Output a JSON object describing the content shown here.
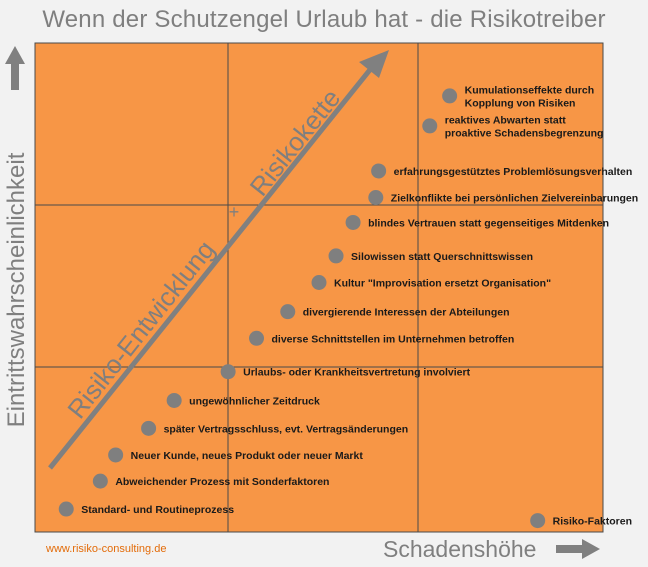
{
  "title": "Wenn der Schutzengel Urlaub hat - die Risikotreiber",
  "y_axis_label": "Eintrittswahrscheinlichkeit",
  "x_axis_label": "Schadenshöhe",
  "footer_url": "www.risiko-consulting.de",
  "diagonal_label_lower": "Risiko-Entwicklung",
  "diagonal_label_upper": "Risikokette",
  "center_mark": "+",
  "colors": {
    "plot_background": "#f79646",
    "grid": "#4a4a4a",
    "points": "#7f7f7f",
    "arrows": "#808080",
    "diagonal_text": "#7f7f7f",
    "footer": "#e36c0a"
  },
  "chart_data": {
    "type": "scatter",
    "grid": "3x3",
    "points": [
      {
        "label": "Kumulationseffekte durch|Kopplung von Risiken",
        "x": 0.73,
        "y": 0.935
      },
      {
        "label": "reaktives Abwarten statt|proaktive Schadensbegrenzung",
        "x": 0.695,
        "y": 0.865
      },
      {
        "label": "erfahrungsgestütztes Problemlösungsverhalten",
        "x": 0.605,
        "y": 0.76
      },
      {
        "label": "Zielkonflikte bei persönlichen Zielvereinbarungen",
        "x": 0.6,
        "y": 0.698
      },
      {
        "label": "blindes Vertrauen statt gegenseitiges Mitdenken",
        "x": 0.56,
        "y": 0.64
      },
      {
        "label": "Silowissen statt Querschnittswissen",
        "x": 0.53,
        "y": 0.562
      },
      {
        "label": "Kultur \"Improvisation ersetzt Organisation\"",
        "x": 0.5,
        "y": 0.5
      },
      {
        "label": "divergierende Interessen der Abteilungen",
        "x": 0.445,
        "y": 0.432
      },
      {
        "label": "diverse Schnittstellen im Unternehmen betroffen",
        "x": 0.39,
        "y": 0.37
      },
      {
        "label": "Urlaubs- oder Krankheitsvertretung involviert",
        "x": 0.34,
        "y": 0.292
      },
      {
        "label": "ungewöhnlicher Zeitdruck",
        "x": 0.245,
        "y": 0.225
      },
      {
        "label": "später Vertragsschluss, evt. Vertragsänderungen",
        "x": 0.2,
        "y": 0.16
      },
      {
        "label": "Neuer Kunde, neues Produkt oder neuer Markt",
        "x": 0.142,
        "y": 0.098
      },
      {
        "label": "Abweichender Prozess mit Sonderfaktoren",
        "x": 0.115,
        "y": 0.037
      },
      {
        "label": "Standard- und Routineprozess",
        "x": 0.055,
        "y": -0.028
      },
      {
        "label": "Risiko-Faktoren",
        "x": 0.885,
        "y": -0.055
      }
    ]
  }
}
